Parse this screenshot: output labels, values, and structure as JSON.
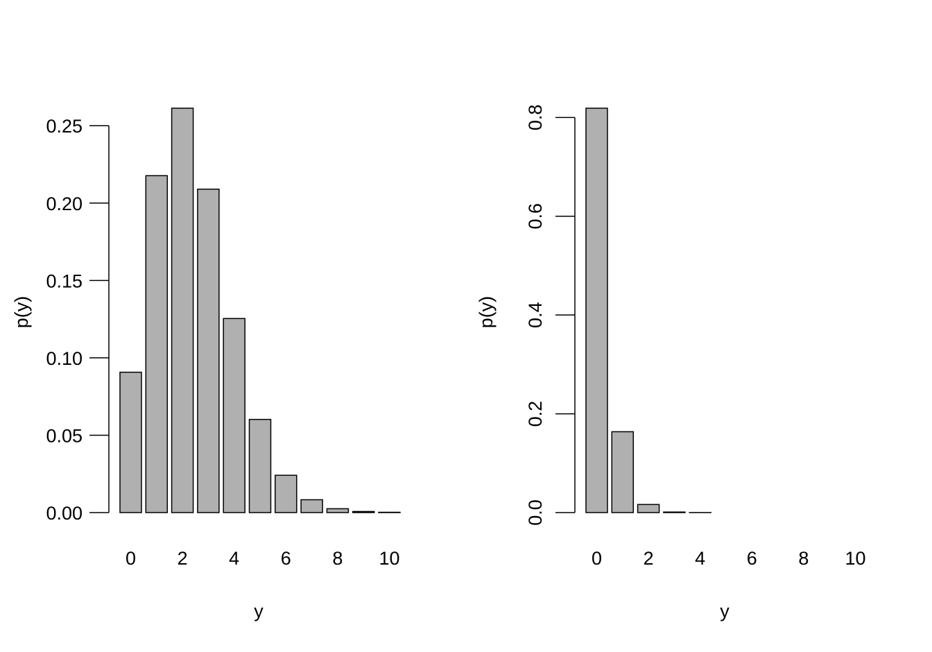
{
  "chart_data": [
    {
      "type": "bar",
      "x": [
        0,
        1,
        2,
        3,
        4,
        5,
        6,
        7,
        8,
        9,
        10
      ],
      "values": [
        0.0907,
        0.2177,
        0.2613,
        0.209,
        0.1254,
        0.0602,
        0.0241,
        0.0083,
        0.0025,
        0.0007,
        0.0002
      ],
      "xlabel": "y",
      "ylabel": "p(y)",
      "xtick_labels": [
        "0",
        "2",
        "4",
        "6",
        "8",
        "10"
      ],
      "yticks": [
        0.0,
        0.05,
        0.1,
        0.15,
        0.2,
        0.25
      ],
      "ytick_labels": [
        "0.00",
        "0.05",
        "0.10",
        "0.15",
        "0.20",
        "0.25"
      ],
      "ylim": [
        0,
        0.2613
      ],
      "ytick_orientation": "horizontal",
      "bar_color": "#b0b0b0",
      "grid": false
    },
    {
      "type": "bar",
      "x": [
        0,
        1,
        2,
        3,
        4,
        5,
        6,
        7,
        8,
        9,
        10
      ],
      "values": [
        0.8187,
        0.1637,
        0.0164,
        0.0011,
        0.0001,
        0.0,
        0.0,
        0.0,
        0.0,
        0.0,
        0.0
      ],
      "xlabel": "y",
      "ylabel": "p(y)",
      "xtick_labels": [
        "0",
        "2",
        "4",
        "6",
        "8",
        "10"
      ],
      "yticks": [
        0.0,
        0.2,
        0.4,
        0.6,
        0.8
      ],
      "ytick_labels": [
        "0.0",
        "0.2",
        "0.4",
        "0.6",
        "0.8"
      ],
      "ylim": [
        0,
        0.8187
      ],
      "ytick_orientation": "rotated",
      "bar_color": "#b0b0b0",
      "grid": false
    }
  ]
}
